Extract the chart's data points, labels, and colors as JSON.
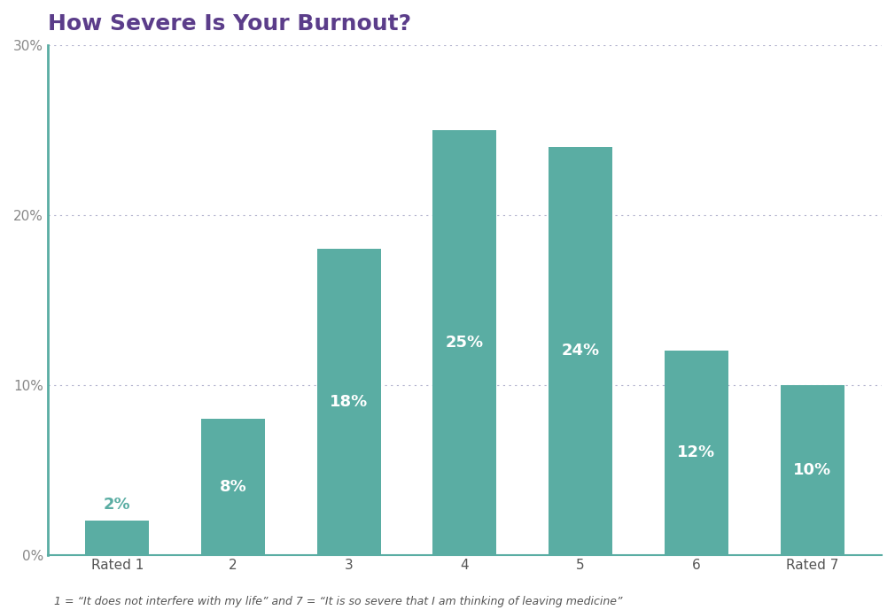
{
  "title": "How Severe Is Your Burnout?",
  "title_color": "#5b3d8a",
  "title_fontsize": 18,
  "categories": [
    "Rated 1",
    "2",
    "3",
    "4",
    "5",
    "6",
    "Rated 7"
  ],
  "values": [
    2,
    8,
    18,
    25,
    24,
    12,
    10
  ],
  "bar_color": "#5aada3",
  "label_color_outside": "#5aada3",
  "label_color_inside": "#ffffff",
  "label_fontsize": 13,
  "ylim": [
    0,
    30
  ],
  "yticks": [
    0,
    10,
    20,
    30
  ],
  "ytick_labels": [
    "0%",
    "10%",
    "20%",
    "30%"
  ],
  "grid_color": "#b0b0cc",
  "background_color": "#ffffff",
  "footnote": "1 = “It does not interfere with my life” and 7 = “It is so severe that I am thinking of leaving medicine”",
  "footnote_fontsize": 9,
  "footnote_color": "#555555",
  "tick_fontsize": 11,
  "ytick_color": "#888888",
  "xtick_color": "#555555",
  "bar_width": 0.55,
  "spine_color": "#5aada3"
}
